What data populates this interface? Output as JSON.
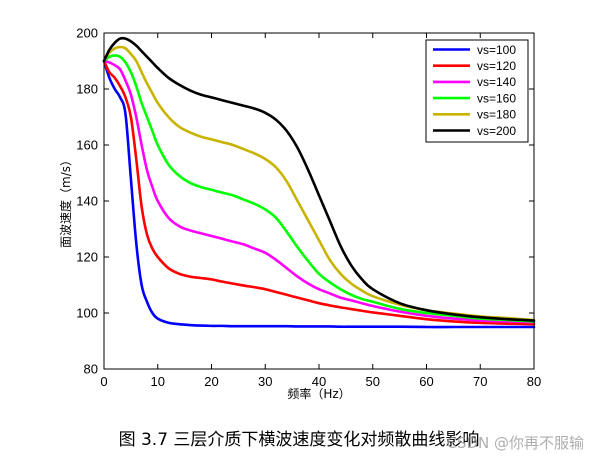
{
  "chart_data": {
    "type": "line",
    "xlabel": "频率（Hz）",
    "ylabel": "面波速度（m/s）",
    "xlim": [
      0,
      80
    ],
    "ylim": [
      80,
      200
    ],
    "xticks": [
      "0",
      "10",
      "20",
      "30",
      "40",
      "50",
      "60",
      "70",
      "80"
    ],
    "yticks": [
      "80",
      "100",
      "120",
      "140",
      "160",
      "180",
      "200"
    ],
    "grid": false,
    "legend_position": "top-right",
    "x": [
      0,
      1,
      2,
      3,
      4,
      5,
      6,
      7,
      8,
      9,
      10,
      12,
      14,
      16,
      18,
      20,
      22,
      24,
      26,
      28,
      30,
      32,
      34,
      36,
      38,
      40,
      42,
      44,
      46,
      48,
      50,
      55,
      60,
      65,
      70,
      75,
      80
    ],
    "series": [
      {
        "name": "vs=100",
        "color": "#0000ff",
        "values": [
          190,
          184,
          180,
          177,
          171,
          148,
          125,
          110,
          104,
          100,
          98,
          96.5,
          96,
          95.7,
          95.5,
          95.4,
          95.4,
          95.3,
          95.3,
          95.3,
          95.3,
          95.3,
          95.3,
          95.2,
          95.2,
          95.2,
          95.2,
          95.1,
          95.1,
          95.1,
          95.1,
          95.1,
          95.0,
          95.0,
          95.0,
          95.0,
          95.0
        ]
      },
      {
        "name": "vs=120",
        "color": "#ff0000",
        "values": [
          190,
          186,
          184,
          181,
          177,
          170,
          155,
          138,
          128,
          123,
          120,
          116,
          114,
          113,
          112.5,
          112,
          111.2,
          110.5,
          109.8,
          109.2,
          108.5,
          107.5,
          106.5,
          105.5,
          104.5,
          103.5,
          102.7,
          102,
          101.4,
          100.8,
          100.2,
          99,
          97.8,
          97,
          96.5,
          96.2,
          96.0
        ]
      },
      {
        "name": "vs=140",
        "color": "#ff00ff",
        "values": [
          190,
          189.5,
          188.5,
          187,
          183,
          178,
          170,
          160,
          151,
          145,
          140,
          134,
          131,
          129.5,
          128.5,
          127.5,
          126.5,
          125.5,
          124.5,
          123,
          121.5,
          119,
          116,
          113,
          110.5,
          108.5,
          107,
          105.5,
          104.5,
          103.5,
          102.5,
          100.5,
          99,
          98,
          97.3,
          97,
          96.7
        ]
      },
      {
        "name": "vs=160",
        "color": "#00ff00",
        "values": [
          190,
          191.5,
          192,
          191.5,
          189.5,
          186,
          181,
          175,
          170,
          165,
          160,
          153,
          149,
          146.5,
          145,
          144,
          143,
          142,
          140.5,
          139,
          137,
          134,
          129,
          123.5,
          118.5,
          114,
          111,
          108.5,
          106.5,
          105,
          104,
          101.5,
          100,
          99,
          98,
          97.5,
          97
        ]
      },
      {
        "name": "vs=180",
        "color": "#c8b400",
        "values": [
          190,
          193,
          194.5,
          195,
          194.5,
          192.5,
          190,
          186,
          182,
          178.5,
          175,
          170,
          166.5,
          164.5,
          163,
          162,
          161,
          160,
          158.5,
          157,
          155,
          152,
          147,
          140,
          133,
          126,
          119,
          114,
          110.5,
          108,
          106,
          103,
          101,
          99.8,
          98.8,
          98.2,
          97.5
        ]
      },
      {
        "name": "vs=200",
        "color": "#000000",
        "values": [
          190,
          194,
          196.5,
          198,
          198,
          197,
          195.5,
          193.5,
          191.5,
          189.5,
          187.5,
          184,
          181.5,
          179.5,
          178,
          177,
          176,
          175,
          174,
          173,
          171.5,
          169,
          165,
          159,
          151,
          142,
          133,
          124,
          117,
          112,
          108.5,
          103.5,
          101,
          99.5,
          98.5,
          97.8,
          97.3
        ]
      }
    ]
  },
  "caption": "图 3.7 三层介质下横波速度变化对频散曲线影响",
  "watermark": "CSDN @你再不服输"
}
